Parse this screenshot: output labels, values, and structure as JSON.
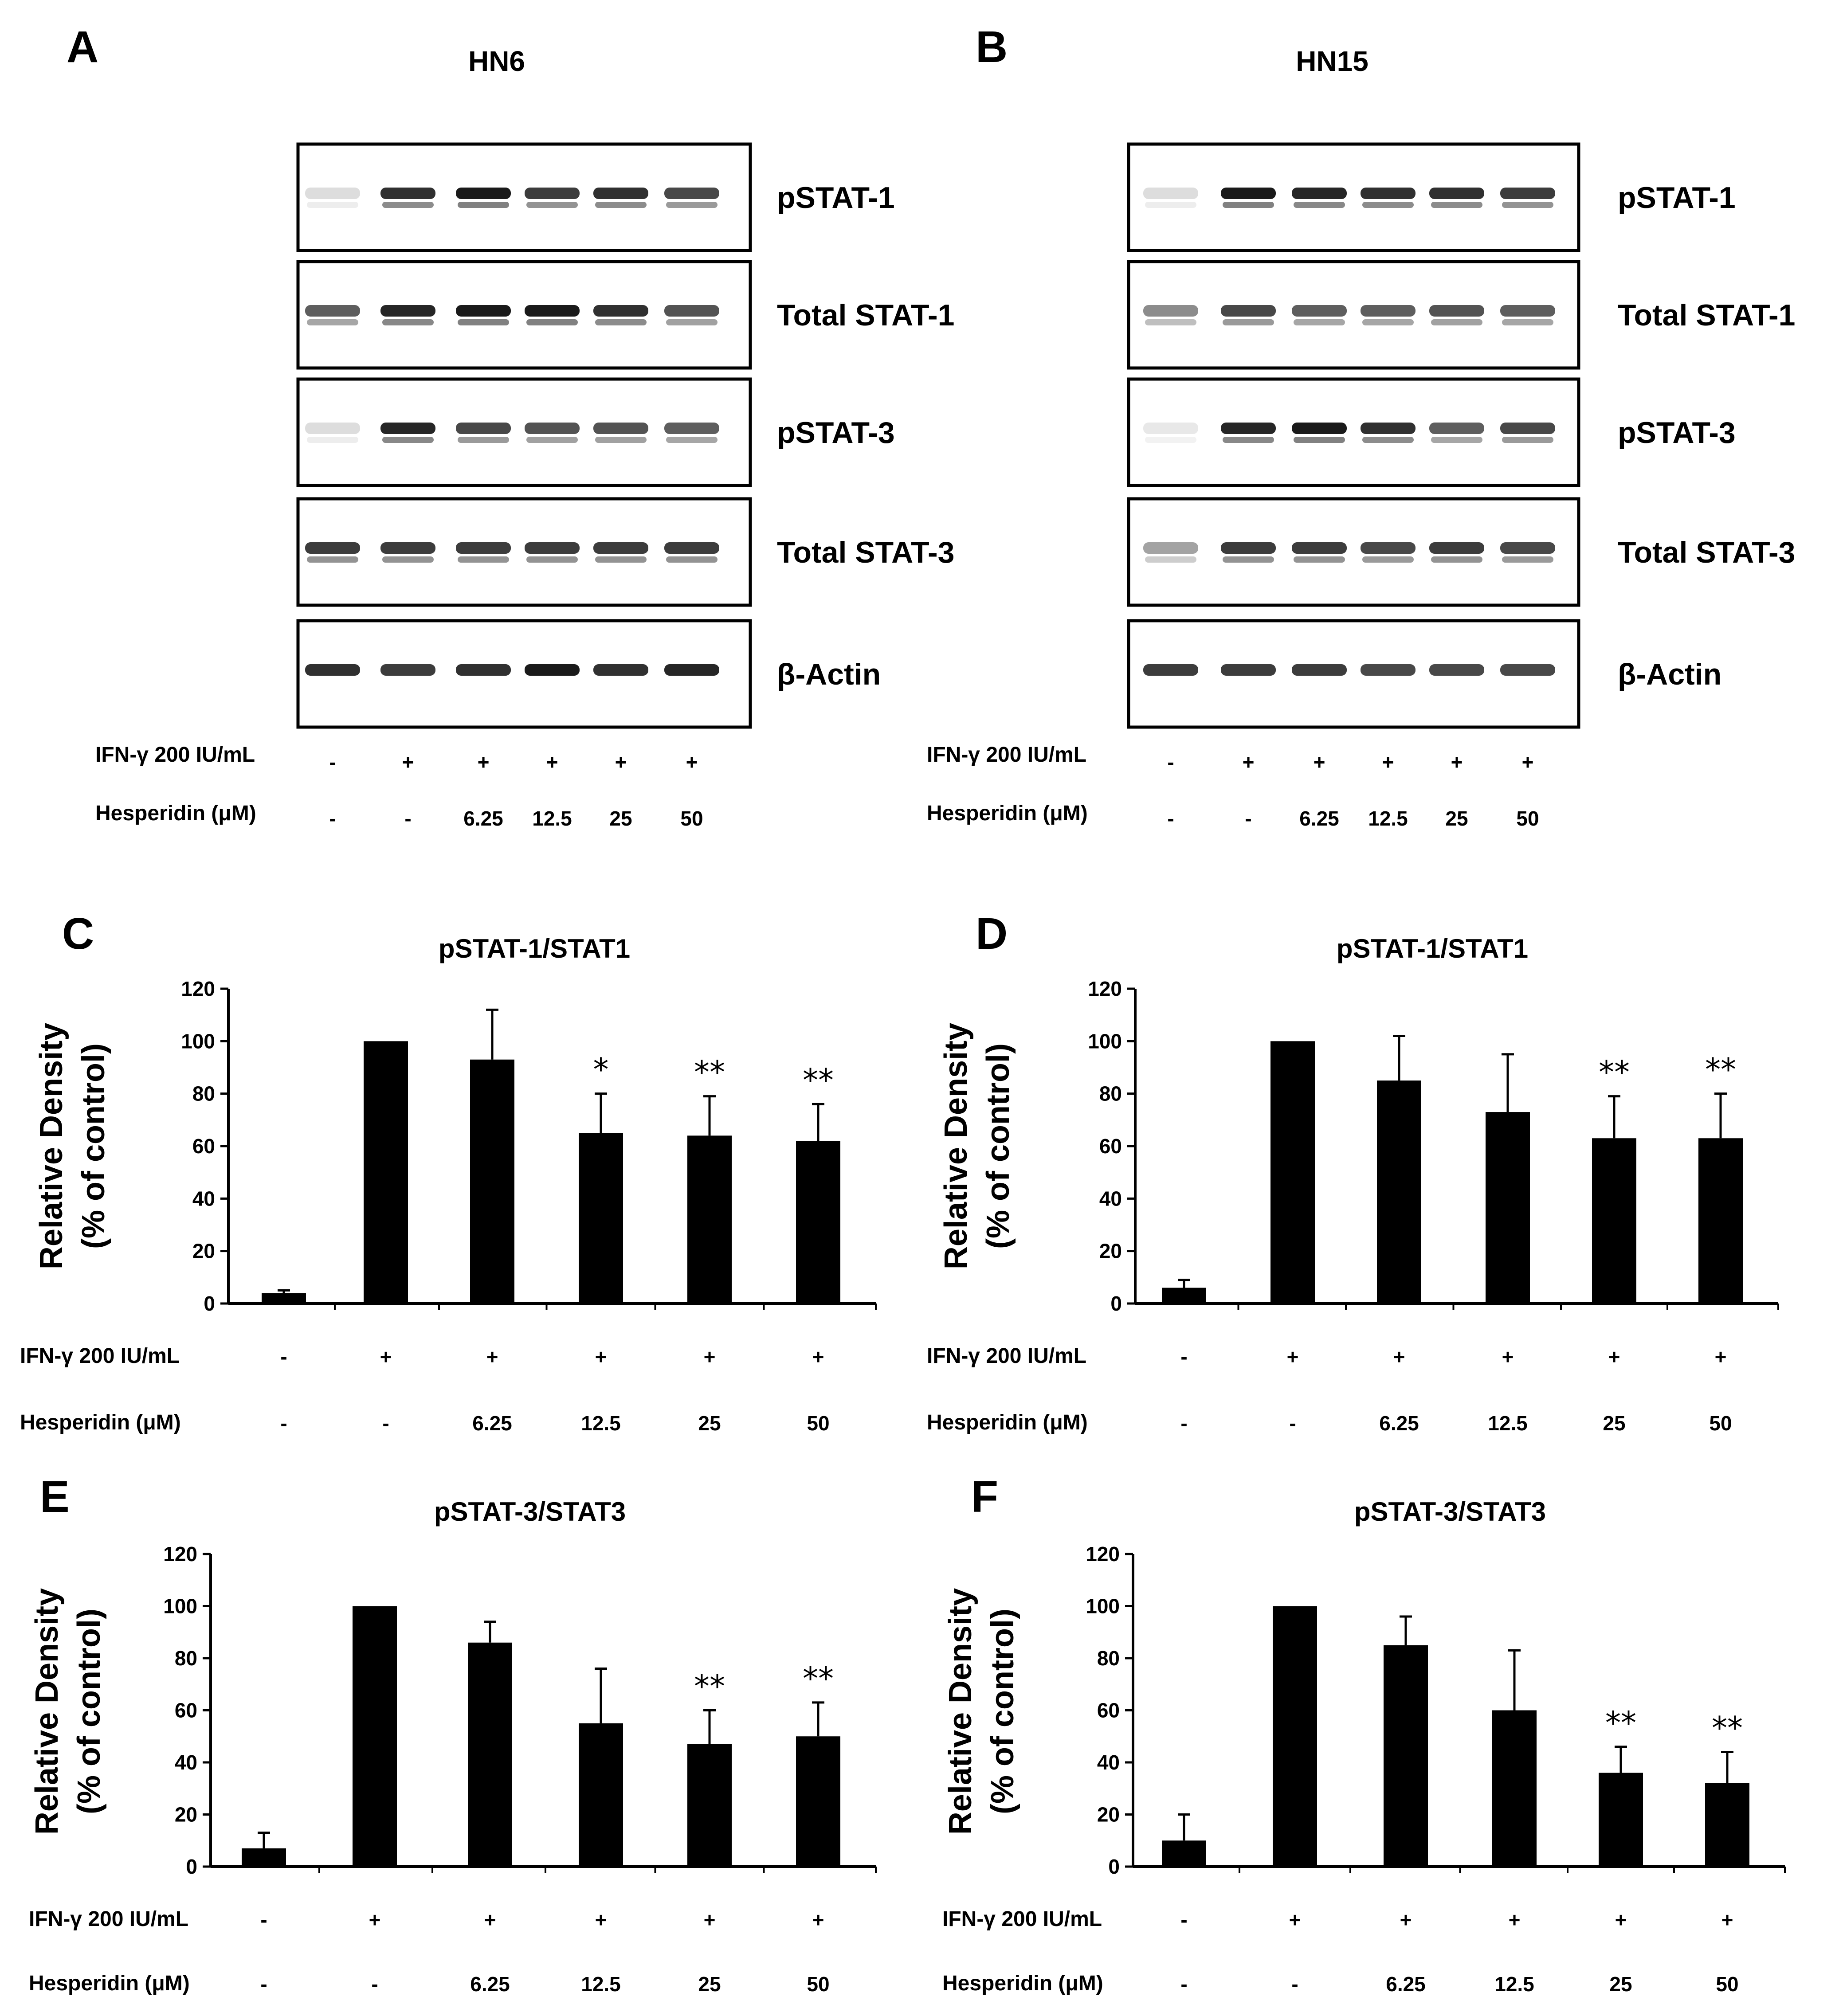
{
  "colors": {
    "bar": "#000000",
    "band": "#1a1a1a",
    "frame": "#000000",
    "background": "#ffffff"
  },
  "blots": [
    {
      "letter": "A",
      "cell_line": "HN6",
      "rows": [
        "pSTAT-1",
        "Total STAT-1",
        "pSTAT-3",
        "Total STAT-3",
        "β-Actin"
      ],
      "condition_labels": [
        "IFN-γ 200 IU/mL",
        "Hesperidin (μM)"
      ],
      "ifn": [
        "-",
        "+",
        "+",
        "+",
        "+",
        "+"
      ],
      "hesperidin": [
        "-",
        "-",
        "6.25",
        "12.5",
        "25",
        "50"
      ]
    },
    {
      "letter": "B",
      "cell_line": "HN15",
      "rows": [
        "pSTAT-1",
        "Total STAT-1",
        "pSTAT-3",
        "Total STAT-3",
        "β-Actin"
      ],
      "condition_labels": [
        "IFN-γ 200 IU/mL",
        "Hesperidin (μM)"
      ],
      "ifn": [
        "-",
        "+",
        "+",
        "+",
        "+",
        "+"
      ],
      "hesperidin": [
        "-",
        "-",
        "6.25",
        "12.5",
        "25",
        "50"
      ]
    }
  ],
  "chart_data": [
    {
      "letter": "C",
      "type": "bar",
      "title": "pSTAT-1/STAT1",
      "ylabel": [
        "Relative Density",
        "(% of control)"
      ],
      "ylim": [
        0,
        120
      ],
      "yticks": [
        "0",
        "20",
        "40",
        "60",
        "80",
        "100",
        "120"
      ],
      "row_labels": [
        "IFN-γ 200 IU/mL",
        "Hesperidin (μM)"
      ],
      "ifn": [
        "-",
        "+",
        "+",
        "+",
        "+",
        "+"
      ],
      "hesperidin": [
        "-",
        "-",
        "6.25",
        "12.5",
        "25",
        "50"
      ],
      "values": [
        4,
        100,
        93,
        65,
        64,
        62
      ],
      "errors": [
        1,
        0,
        19,
        15,
        15,
        14
      ],
      "significance": [
        "",
        "",
        "",
        "*",
        "**",
        "**"
      ]
    },
    {
      "letter": "D",
      "type": "bar",
      "title": "pSTAT-1/STAT1",
      "ylabel": [
        "Relative Density",
        "(% of control)"
      ],
      "ylim": [
        0,
        120
      ],
      "yticks": [
        "0",
        "20",
        "40",
        "60",
        "80",
        "100",
        "120"
      ],
      "row_labels": [
        "IFN-γ 200 IU/mL",
        "Hesperidin (μM)"
      ],
      "ifn": [
        "-",
        "+",
        "+",
        "+",
        "+",
        "+"
      ],
      "hesperidin": [
        "-",
        "-",
        "6.25",
        "12.5",
        "25",
        "50"
      ],
      "values": [
        6,
        100,
        85,
        73,
        63,
        63
      ],
      "errors": [
        3,
        0,
        17,
        22,
        16,
        17
      ],
      "significance": [
        "",
        "",
        "",
        "",
        "**",
        "**"
      ]
    },
    {
      "letter": "E",
      "type": "bar",
      "title": "pSTAT-3/STAT3",
      "ylabel": [
        "Relative Density",
        "(% of control)"
      ],
      "ylim": [
        0,
        120
      ],
      "yticks": [
        "0",
        "20",
        "40",
        "60",
        "80",
        "100",
        "120"
      ],
      "row_labels": [
        "IFN-γ 200 IU/mL",
        "Hesperidin (μM)"
      ],
      "ifn": [
        "-",
        "+",
        "+",
        "+",
        "+",
        "+"
      ],
      "hesperidin": [
        "-",
        "-",
        "6.25",
        "12.5",
        "25",
        "50"
      ],
      "values": [
        7,
        100,
        86,
        55,
        47,
        50
      ],
      "errors": [
        6,
        0,
        8,
        21,
        13,
        13
      ],
      "significance": [
        "",
        "",
        "",
        "",
        "**",
        "**"
      ]
    },
    {
      "letter": "F",
      "type": "bar",
      "title": "pSTAT-3/STAT3",
      "ylabel": [
        "Relative Density",
        "(% of control)"
      ],
      "ylim": [
        0,
        120
      ],
      "yticks": [
        "0",
        "20",
        "40",
        "60",
        "80",
        "100",
        "120"
      ],
      "row_labels": [
        "IFN-γ 200 IU/mL",
        "Hesperidin (μM)"
      ],
      "ifn": [
        "-",
        "+",
        "+",
        "+",
        "+",
        "+"
      ],
      "hesperidin": [
        "-",
        "-",
        "6.25",
        "12.5",
        "25",
        "50"
      ],
      "values": [
        10,
        100,
        85,
        60,
        36,
        32
      ],
      "errors": [
        10,
        0,
        11,
        23,
        10,
        12
      ],
      "significance": [
        "",
        "",
        "",
        "",
        "**",
        "**"
      ]
    }
  ]
}
